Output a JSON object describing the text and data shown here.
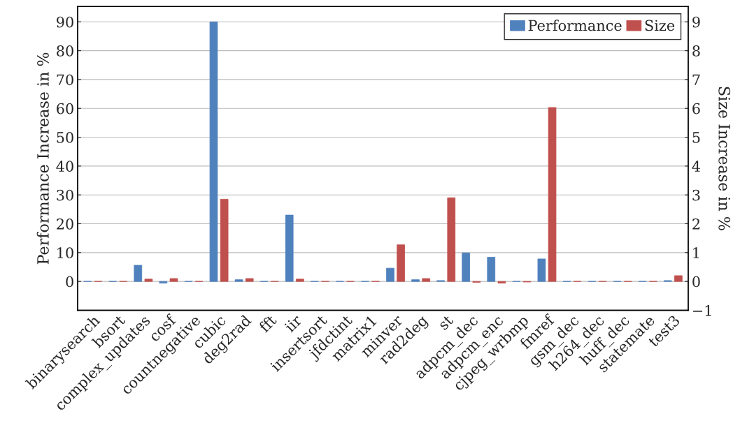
{
  "chart_data": {
    "type": "bar",
    "categories": [
      "binarysearch",
      "bsort",
      "complex_updates",
      "cosf",
      "countnegative",
      "cubic",
      "deg2rad",
      "fft",
      "iir",
      "insertsort",
      "jfdctint",
      "matrix1",
      "minver",
      "rad2deg",
      "st",
      "adpcm_dec",
      "adpcm_enc",
      "cjpeg_wrbmp",
      "fmref",
      "gsm_dec",
      "h264_dec",
      "huff_dec",
      "statemate",
      "test3"
    ],
    "series": [
      {
        "name": "Performance",
        "color": "#4f81bd",
        "values": [
          0,
          0,
          5.6,
          -0.6,
          0,
          90,
          0.6,
          0,
          23,
          0,
          0,
          0,
          4.6,
          0.6,
          0.3,
          9.9,
          8.4,
          0,
          7.8,
          0,
          0,
          0,
          0,
          0.3
        ]
      },
      {
        "name": "Size",
        "color": "#c0504d",
        "axis": "y2",
        "values": [
          0,
          0,
          0.08,
          0.1,
          0,
          2.85,
          0.1,
          0,
          0.08,
          0,
          0,
          0,
          1.27,
          0.1,
          2.9,
          -0.03,
          -0.06,
          -0.02,
          6.03,
          0,
          0,
          0,
          0,
          0.2
        ]
      }
    ],
    "ylabel": "Performance Increase in %",
    "y2label": "Size Increase in %",
    "ylim": [
      -10,
      95.3
    ],
    "yticks": [
      0,
      10,
      20,
      30,
      40,
      50,
      60,
      70,
      80,
      90
    ],
    "y2lim": [
      -1,
      9.53
    ],
    "y2ticks": [
      -1,
      0,
      1,
      2,
      3,
      4,
      5,
      6,
      7,
      8,
      9
    ],
    "grid": "y",
    "legend": "top right"
  }
}
